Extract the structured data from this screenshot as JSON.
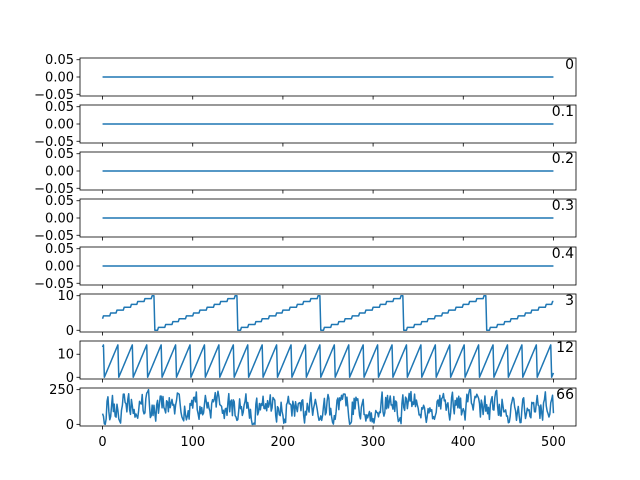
{
  "chart_data": {
    "type": "line",
    "layout": "8 stacked subplots sharing x axis",
    "line_color": "#1f77b4",
    "xlim": [
      -25,
      525
    ],
    "xticks": [
      0,
      100,
      200,
      300,
      400,
      500
    ],
    "xtick_labels": [
      "0",
      "100",
      "200",
      "300",
      "400",
      "500"
    ],
    "x_points": 501,
    "x_step": 1,
    "subplots": [
      {
        "title": "0",
        "ylim": [
          -0.055,
          0.055
        ],
        "yticks": [
          -0.05,
          0.0,
          0.05
        ],
        "ytick_labels": [
          "−0.05",
          "0.00",
          "0.05"
        ],
        "series": {
          "kind": "constant",
          "value": 0
        }
      },
      {
        "title": "0.1",
        "ylim": [
          -0.055,
          0.055
        ],
        "yticks": [
          -0.05,
          0.0,
          0.05
        ],
        "ytick_labels": [
          "−0.05",
          "0.00",
          "0.05"
        ],
        "series": {
          "kind": "constant",
          "value": 0
        }
      },
      {
        "title": "0.2",
        "ylim": [
          -0.055,
          0.055
        ],
        "yticks": [
          -0.05,
          0.0,
          0.05
        ],
        "ytick_labels": [
          "−0.05",
          "0.00",
          "0.05"
        ],
        "series": {
          "kind": "constant",
          "value": 0
        }
      },
      {
        "title": "0.3",
        "ylim": [
          -0.055,
          0.055
        ],
        "yticks": [
          -0.05,
          0.0,
          0.05
        ],
        "ytick_labels": [
          "−0.05",
          "0.00",
          "0.05"
        ],
        "series": {
          "kind": "constant",
          "value": 0
        }
      },
      {
        "title": "0.4",
        "ylim": [
          -0.055,
          0.055
        ],
        "yticks": [
          -0.05,
          0.0,
          0.05
        ],
        "ytick_labels": [
          "−0.05",
          "0.00",
          "0.05"
        ],
        "series": {
          "kind": "constant",
          "value": 0
        }
      },
      {
        "title": "3",
        "ylim": [
          -0.5,
          10.5
        ],
        "yticks": [
          0,
          10
        ],
        "ytick_labels": [
          "0",
          "10"
        ],
        "series": {
          "kind": "sawtooth",
          "period": 92,
          "phase_offset": 34,
          "max": 10
        }
      },
      {
        "title": "12",
        "ylim": [
          -0.75,
          15.75
        ],
        "yticks": [
          0,
          10
        ],
        "ytick_labels": [
          "0",
          "10"
        ],
        "series": {
          "kind": "sawtooth",
          "period": 16,
          "phase_offset": 14,
          "max": 15
        }
      },
      {
        "title": "66",
        "ylim": [
          -12,
          262
        ],
        "yticks": [
          0,
          250
        ],
        "ytick_labels": [
          "0",
          "250"
        ],
        "series": {
          "kind": "noise",
          "min": 0,
          "max": 250,
          "seed": 66
        }
      }
    ]
  }
}
